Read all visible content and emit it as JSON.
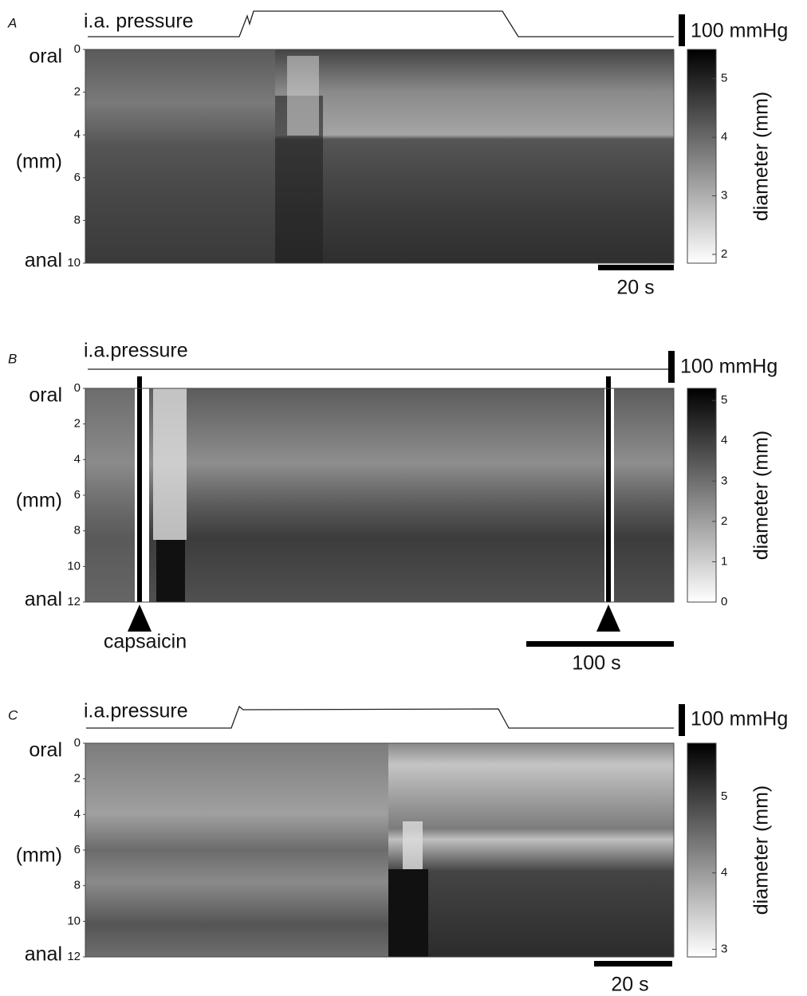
{
  "chart_data": [
    {
      "type": "spatiotemporal-map",
      "panel_label": "A",
      "trace_label": "i.a. pressure",
      "pressure_scale": "100 mmHg",
      "y_top_label": "oral",
      "y_bottom_label": "anal",
      "y_unit": "(mm)",
      "ylim": [
        0,
        10
      ],
      "yticks": [
        0,
        2,
        4,
        6,
        8,
        10
      ],
      "colorbar_label": "diameter (mm)",
      "clim": [
        1.85,
        5.5
      ],
      "cticks": [
        2,
        3,
        4,
        5
      ],
      "time_scale": "20 s"
    },
    {
      "type": "spatiotemporal-map",
      "panel_label": "B",
      "trace_label": "i.a.pressure",
      "pressure_scale": "100 mmHg",
      "y_top_label": "oral",
      "y_bottom_label": "anal",
      "y_unit": "(mm)",
      "ylim": [
        0,
        12
      ],
      "yticks": [
        0,
        2,
        4,
        6,
        8,
        10,
        12
      ],
      "colorbar_label": "diameter (mm)",
      "clim": [
        0,
        5.3
      ],
      "cticks": [
        0,
        1,
        2,
        3,
        4,
        5
      ],
      "time_scale": "100 s",
      "annotation": "capsaicin"
    },
    {
      "type": "spatiotemporal-map",
      "panel_label": "C",
      "trace_label": "i.a.pressure",
      "pressure_scale": "100 mmHg",
      "y_top_label": "oral",
      "y_bottom_label": "anal",
      "y_unit": "(mm)",
      "ylim": [
        0,
        12
      ],
      "yticks": [
        0,
        2,
        4,
        6,
        8,
        10,
        12
      ],
      "colorbar_label": "diameter (mm)",
      "clim": [
        2.9,
        5.7
      ],
      "cticks": [
        3,
        4,
        5
      ],
      "time_scale": "20 s"
    }
  ]
}
